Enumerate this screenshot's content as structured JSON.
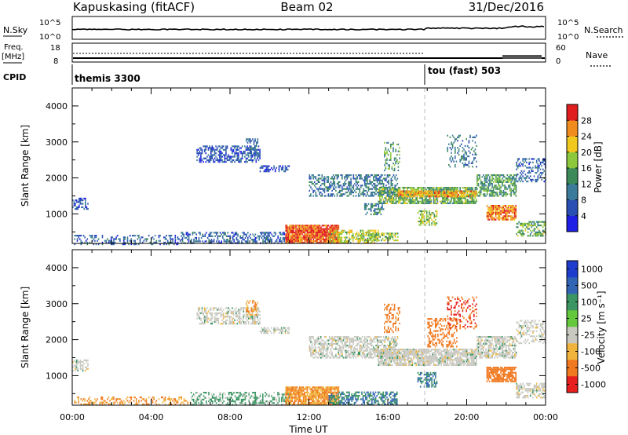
{
  "header": {
    "station": "Kapuskasing (fitACF)",
    "beam": "Beam 02",
    "date": "31/Dec/2016"
  },
  "panels": {
    "nsky": {
      "left_label": "N.Sky",
      "right_label": "N.Search",
      "ticks_left": [
        "10^5",
        "10^0"
      ],
      "ticks_right": [
        "10^5",
        "10^0"
      ]
    },
    "freq": {
      "left_label_1": "Freq.",
      "left_label_2": "[MHz]",
      "right_label": "Nave",
      "ticks_left": [
        "18",
        "8"
      ],
      "ticks_right": [
        "60",
        "0"
      ]
    },
    "cpid": {
      "label": "CPID",
      "program_1": "themis 3300",
      "program_2": "tou (fast) 503"
    }
  },
  "axes": {
    "ylabel": "Slant Range [km]",
    "xlabel": "Time UT",
    "yticks": [
      "1000",
      "2000",
      "3000",
      "4000"
    ],
    "xticks": [
      "00:00",
      "04:00",
      "08:00",
      "12:00",
      "16:00",
      "20:00",
      "00:00"
    ]
  },
  "colorbars": {
    "power": {
      "label": "Power [dB]",
      "ticks": [
        "4",
        "8",
        "12",
        "16",
        "20",
        "24",
        "28"
      ],
      "colors": [
        "#1e1ee6",
        "#2a4fb4",
        "#3a7a9a",
        "#3c8a5a",
        "#8cc83c",
        "#f0c81e",
        "#f08c1e",
        "#e01e1e"
      ]
    },
    "velocity": {
      "label": "Velocity [m s⁻¹]",
      "ticks": [
        "1000",
        "500",
        "100",
        "25",
        "-25",
        "-100",
        "-500",
        "-1000"
      ],
      "colors": [
        "#1e3ccd",
        "#3264b4",
        "#3c9664",
        "#64c83c",
        "#c8c8c0",
        "#f0b43c",
        "#f0781e",
        "#e61e1e"
      ]
    }
  },
  "chart_data": [
    {
      "type": "heatmap",
      "name": "power",
      "xlim": [
        "00:00",
        "24:00"
      ],
      "ylim": [
        180,
        4500
      ],
      "colorbar": "Power [dB]",
      "regions": [
        {
          "t0": 0.0,
          "t1": 0.8,
          "r0": 1150,
          "r1": 1450,
          "value": 6,
          "density": 0.5
        },
        {
          "t0": 0.1,
          "t1": 5.5,
          "r0": 180,
          "r1": 420,
          "value": 8,
          "density": 0.35
        },
        {
          "t0": 5.5,
          "t1": 11.0,
          "r0": 180,
          "r1": 500,
          "value": 8,
          "density": 0.45
        },
        {
          "t0": 6.3,
          "t1": 9.5,
          "r0": 2450,
          "r1": 2900,
          "value": 6,
          "density": 0.55
        },
        {
          "t0": 8.8,
          "t1": 9.4,
          "r0": 2700,
          "r1": 3100,
          "value": 8,
          "density": 0.5
        },
        {
          "t0": 9.5,
          "t1": 11.0,
          "r0": 2200,
          "r1": 2350,
          "value": 5,
          "density": 0.6
        },
        {
          "t0": 10.8,
          "t1": 13.5,
          "r0": 200,
          "r1": 700,
          "value": 28,
          "density": 0.95
        },
        {
          "t0": 13.0,
          "t1": 15.5,
          "r0": 220,
          "r1": 560,
          "value": 20,
          "density": 0.55
        },
        {
          "t0": 14.5,
          "t1": 16.5,
          "r0": 250,
          "r1": 480,
          "value": 18,
          "density": 0.5
        },
        {
          "t0": 12.0,
          "t1": 16.5,
          "r0": 1500,
          "r1": 2100,
          "value": 10,
          "density": 0.5
        },
        {
          "t0": 15.5,
          "t1": 20.5,
          "r0": 1300,
          "r1": 1750,
          "value": 16,
          "density": 0.75
        },
        {
          "t0": 16.5,
          "t1": 20.5,
          "r0": 1500,
          "r1": 1650,
          "value": 24,
          "density": 0.8
        },
        {
          "t0": 20.5,
          "t1": 22.5,
          "r0": 1500,
          "r1": 2100,
          "value": 14,
          "density": 0.65
        },
        {
          "t0": 21.0,
          "t1": 22.5,
          "r0": 850,
          "r1": 1250,
          "value": 26,
          "density": 0.8
        },
        {
          "t0": 22.5,
          "t1": 24.0,
          "r0": 1900,
          "r1": 2550,
          "value": 8,
          "density": 0.4
        },
        {
          "t0": 22.5,
          "t1": 24.0,
          "r0": 400,
          "r1": 800,
          "value": 16,
          "density": 0.6
        },
        {
          "t0": 15.8,
          "t1": 16.6,
          "r0": 2200,
          "r1": 3000,
          "value": 14,
          "density": 0.35
        },
        {
          "t0": 17.5,
          "t1": 18.5,
          "r0": 700,
          "r1": 1100,
          "value": 18,
          "density": 0.45
        },
        {
          "t0": 14.8,
          "t1": 15.8,
          "r0": 1000,
          "r1": 1300,
          "value": 12,
          "density": 0.5
        },
        {
          "t0": 19.0,
          "t1": 20.5,
          "r0": 2300,
          "r1": 3200,
          "value": 10,
          "density": 0.25
        }
      ]
    },
    {
      "type": "heatmap",
      "name": "velocity",
      "xlim": [
        "00:00",
        "24:00"
      ],
      "ylim": [
        180,
        4500
      ],
      "colorbar": "Velocity [m s⁻¹]",
      "regions": [
        {
          "t0": 0.0,
          "t1": 0.8,
          "r0": 1150,
          "r1": 1450,
          "value": 0,
          "density": 0.5
        },
        {
          "t0": 0.1,
          "t1": 6.0,
          "r0": 180,
          "r1": 420,
          "value": -100,
          "density": 0.35
        },
        {
          "t0": 6.0,
          "t1": 11.0,
          "r0": 180,
          "r1": 550,
          "value": 50,
          "density": 0.45
        },
        {
          "t0": 6.3,
          "t1": 9.5,
          "r0": 2450,
          "r1": 2900,
          "value": 0,
          "density": 0.55
        },
        {
          "t0": 8.8,
          "t1": 9.4,
          "r0": 2700,
          "r1": 3100,
          "value": -100,
          "density": 0.5
        },
        {
          "t0": 9.5,
          "t1": 11.0,
          "r0": 2200,
          "r1": 2350,
          "value": 0,
          "density": 0.6
        },
        {
          "t0": 10.8,
          "t1": 13.5,
          "r0": 200,
          "r1": 700,
          "value": -100,
          "density": 0.85
        },
        {
          "t0": 13.0,
          "t1": 16.5,
          "r0": 220,
          "r1": 560,
          "value": 100,
          "density": 0.55
        },
        {
          "t0": 12.0,
          "t1": 16.5,
          "r0": 1500,
          "r1": 2100,
          "value": 0,
          "density": 0.6
        },
        {
          "t0": 15.5,
          "t1": 20.5,
          "r0": 1300,
          "r1": 1750,
          "value": 0,
          "density": 0.8
        },
        {
          "t0": 20.5,
          "t1": 22.5,
          "r0": 1500,
          "r1": 2100,
          "value": 0,
          "density": 0.7
        },
        {
          "t0": 21.0,
          "t1": 22.5,
          "r0": 850,
          "r1": 1250,
          "value": -300,
          "density": 0.8
        },
        {
          "t0": 22.5,
          "t1": 24.0,
          "r0": 1900,
          "r1": 2550,
          "value": 0,
          "density": 0.4
        },
        {
          "t0": 22.5,
          "t1": 24.0,
          "r0": 400,
          "r1": 800,
          "value": 0,
          "density": 0.6
        },
        {
          "t0": 15.8,
          "t1": 16.6,
          "r0": 2200,
          "r1": 3000,
          "value": -200,
          "density": 0.35
        },
        {
          "t0": 17.5,
          "t1": 18.5,
          "r0": 700,
          "r1": 1100,
          "value": 100,
          "density": 0.45
        },
        {
          "t0": 18.0,
          "t1": 19.5,
          "r0": 1800,
          "r1": 2600,
          "value": -300,
          "density": 0.4
        },
        {
          "t0": 19.0,
          "t1": 20.5,
          "r0": 2300,
          "r1": 3200,
          "value": -500,
          "density": 0.25
        }
      ]
    }
  ]
}
